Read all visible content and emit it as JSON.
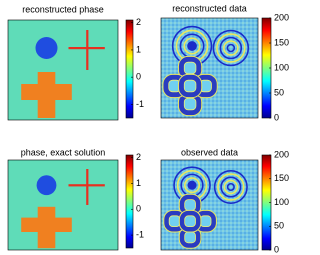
{
  "chart_data": [
    {
      "type": "heatmap",
      "title": "reconstructed phase",
      "colorbar": {
        "ylim": [
          -1.5,
          2.1
        ],
        "yticks": [
          -1,
          0,
          1,
          2
        ]
      }
    },
    {
      "type": "heatmap",
      "title": "reconstructed data",
      "colorbar": {
        "ylim": [
          0,
          200
        ],
        "yticks": [
          0,
          50,
          100,
          150,
          200
        ]
      }
    },
    {
      "type": "heatmap",
      "title": "phase, exact solution",
      "colorbar": {
        "ylim": [
          -1.5,
          2.1
        ],
        "yticks": [
          -1,
          0,
          1,
          2
        ]
      }
    },
    {
      "type": "heatmap",
      "title": "observed data",
      "colorbar": {
        "ylim": [
          0,
          200
        ],
        "yticks": [
          0,
          50,
          100,
          150,
          200
        ]
      }
    }
  ]
}
